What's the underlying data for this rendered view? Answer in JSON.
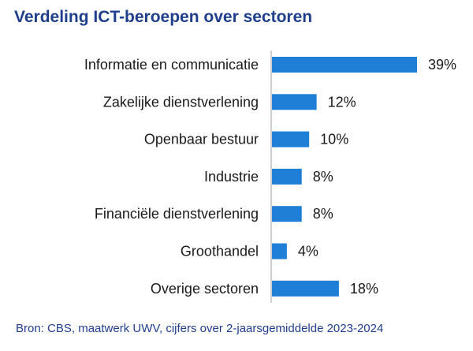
{
  "chart_data": {
    "type": "bar",
    "orientation": "horizontal",
    "title": "Verdeling ICT-beroepen over sectoren",
    "categories": [
      "Informatie en communicatie",
      "Zakelijke dienstverlening",
      "Openbaar bestuur",
      "Industrie",
      "Financiële dienstverlening",
      "Groothandel",
      "Overige sectoren"
    ],
    "values": [
      39,
      12,
      10,
      8,
      8,
      4,
      18
    ],
    "value_labels": [
      "39%",
      "12%",
      "10%",
      "8%",
      "8%",
      "4%",
      "18%"
    ],
    "xlabel": "",
    "ylabel": "",
    "xlim": [
      0,
      39
    ],
    "grid": false,
    "bar_color": "#1f7fd6",
    "axis_color": "#bdbdbd"
  },
  "source": "Bron: CBS, maatwerk UWV, cijfers over 2-jaarsgemiddelde 2023-2024",
  "colors": {
    "title": "#1f3e8c",
    "source": "#1f3e8c"
  }
}
